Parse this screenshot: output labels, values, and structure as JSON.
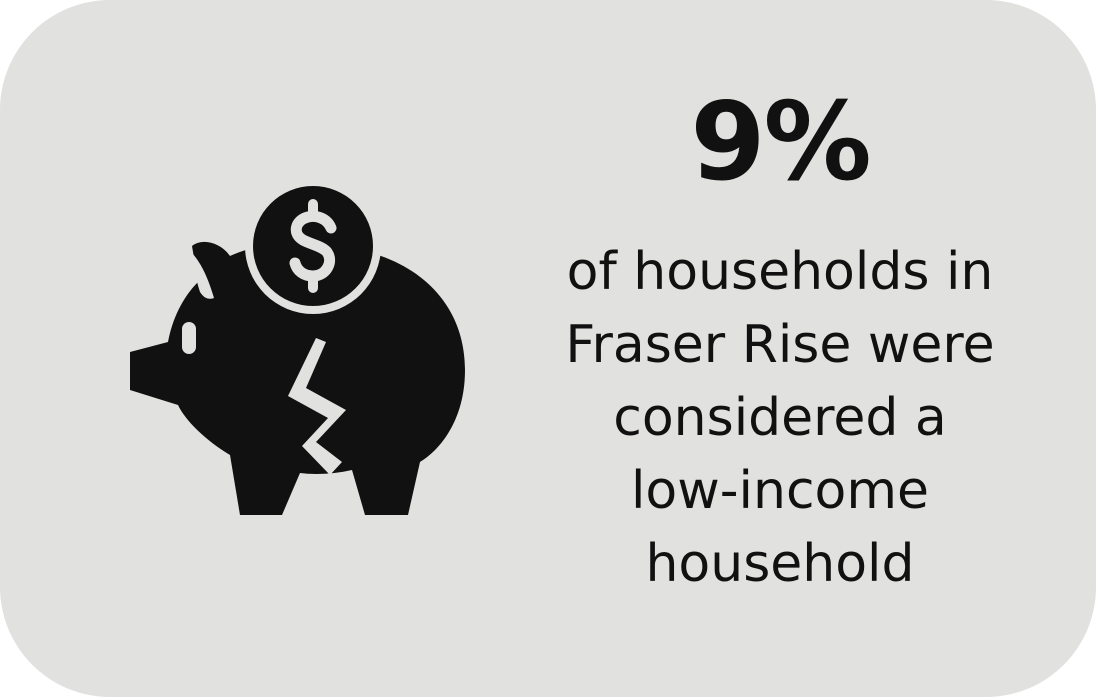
{
  "stat": {
    "value": "9%",
    "lines": [
      "of households in",
      "Fraser Rise were",
      "considered a",
      "low-income",
      "household"
    ]
  },
  "icon": {
    "name": "broken-piggy-bank-icon",
    "color": "#111111"
  },
  "colors": {
    "background": "#e1e1e0",
    "text": "#111111"
  }
}
